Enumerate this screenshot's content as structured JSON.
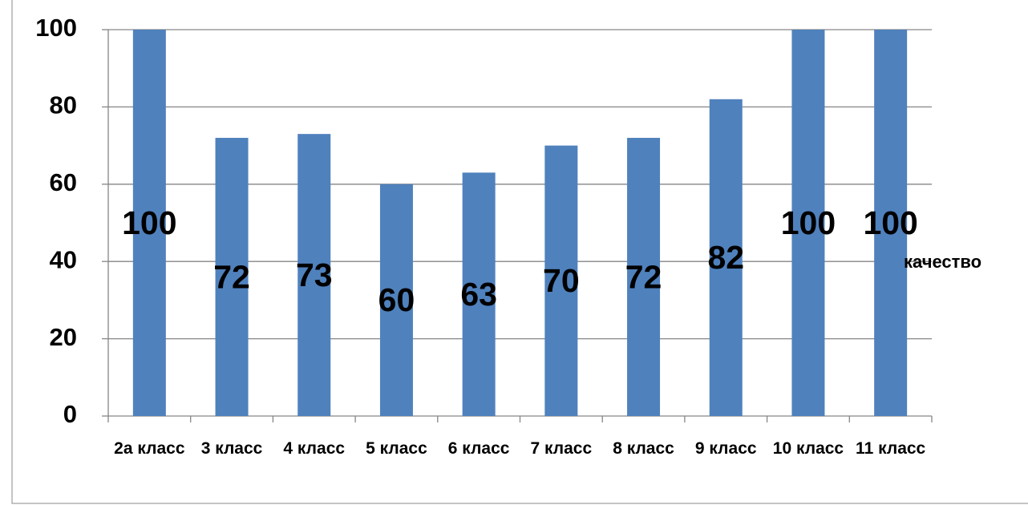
{
  "chart_data": {
    "type": "bar",
    "categories": [
      "2а класс",
      "3 класс",
      "4 класс",
      "5 класс",
      "6 класс",
      "7 класс",
      "8 класс",
      "9 класс",
      "10 класс",
      "11 класс"
    ],
    "series": [
      {
        "name": "качество",
        "color": "#4f81bd",
        "values": [
          100,
          72,
          73,
          60,
          63,
          70,
          72,
          82,
          100,
          100
        ]
      }
    ],
    "ylim": [
      0,
      100
    ],
    "yticks": [
      0,
      20,
      40,
      60,
      80,
      100
    ],
    "grid": true,
    "legend": "right"
  }
}
